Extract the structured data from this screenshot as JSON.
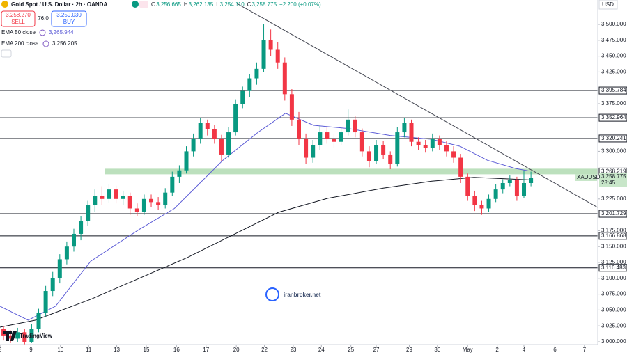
{
  "header": {
    "symbol": "Gold Spot / U.S. Dollar · 2h · OANDA",
    "ohlc": [
      {
        "key": "O",
        "value": "3,256.665"
      },
      {
        "key": "H",
        "value": "3,262.135"
      },
      {
        "key": "L",
        "value": "3,254.110"
      },
      {
        "key": "C",
        "value": "3,258.775"
      }
    ],
    "change": "+2.200 (+0.07%)",
    "sell": {
      "price": "3,258.270",
      "label": "SELL"
    },
    "spread": "76.0",
    "buy": {
      "price": "3,259.030",
      "label": "BUY"
    },
    "currency": "USD"
  },
  "watermark": "iranbroker.net",
  "logo": "TradingView",
  "chart_data": {
    "type": "candlestick",
    "up_color": "#089981",
    "down_color": "#f23645",
    "grid": false,
    "xlim": [
      0,
      85
    ],
    "ylim": [
      2995.6,
      3538.4
    ],
    "candles": [
      [
        3020,
        3025,
        3002,
        3010
      ],
      [
        3010,
        3018,
        2998,
        3005
      ],
      [
        3005,
        3022,
        3000,
        3015
      ],
      [
        3015,
        3020,
        2995,
        3000
      ],
      [
        3000,
        3028,
        2998,
        3020
      ],
      [
        3020,
        3052,
        3015,
        3045
      ],
      [
        3045,
        3088,
        3040,
        3080
      ],
      [
        3080,
        3110,
        3072,
        3100
      ],
      [
        3100,
        3138,
        3092,
        3130
      ],
      [
        3130,
        3158,
        3122,
        3150
      ],
      [
        3150,
        3178,
        3142,
        3170
      ],
      [
        3170,
        3198,
        3160,
        3190
      ],
      [
        3190,
        3222,
        3182,
        3215
      ],
      [
        3215,
        3240,
        3205,
        3230
      ],
      [
        3230,
        3245,
        3215,
        3225
      ],
      [
        3225,
        3248,
        3218,
        3240
      ],
      [
        3240,
        3246,
        3218,
        3225
      ],
      [
        3225,
        3238,
        3215,
        3230
      ],
      [
        3230,
        3235,
        3200,
        3210
      ],
      [
        3210,
        3218,
        3198,
        3205
      ],
      [
        3205,
        3232,
        3200,
        3225
      ],
      [
        3225,
        3232,
        3212,
        3220
      ],
      [
        3220,
        3228,
        3208,
        3215
      ],
      [
        3215,
        3242,
        3210,
        3235
      ],
      [
        3235,
        3268,
        3230,
        3260
      ],
      [
        3260,
        3278,
        3250,
        3270
      ],
      [
        3270,
        3308,
        3265,
        3300
      ],
      [
        3300,
        3328,
        3292,
        3320
      ],
      [
        3320,
        3352,
        3312,
        3345
      ],
      [
        3345,
        3350,
        3325,
        3335
      ],
      [
        3335,
        3342,
        3312,
        3320
      ],
      [
        3320,
        3326,
        3285,
        3295
      ],
      [
        3295,
        3338,
        3290,
        3330
      ],
      [
        3330,
        3382,
        3325,
        3375
      ],
      [
        3375,
        3402,
        3368,
        3395
      ],
      [
        3395,
        3422,
        3385,
        3415
      ],
      [
        3415,
        3440,
        3405,
        3430
      ],
      [
        3430,
        3500,
        3425,
        3475
      ],
      [
        3475,
        3492,
        3450,
        3460
      ],
      [
        3460,
        3472,
        3430,
        3440
      ],
      [
        3440,
        3448,
        3380,
        3390
      ],
      [
        3390,
        3398,
        3340,
        3350
      ],
      [
        3350,
        3362,
        3310,
        3320
      ],
      [
        3320,
        3328,
        3280,
        3290
      ],
      [
        3290,
        3318,
        3282,
        3310
      ],
      [
        3310,
        3340,
        3302,
        3330
      ],
      [
        3330,
        3338,
        3312,
        3320
      ],
      [
        3320,
        3328,
        3305,
        3315
      ],
      [
        3315,
        3338,
        3310,
        3330
      ],
      [
        3330,
        3366,
        3325,
        3350
      ],
      [
        3350,
        3356,
        3322,
        3330
      ],
      [
        3330,
        3336,
        3292,
        3300
      ],
      [
        3300,
        3308,
        3275,
        3285
      ],
      [
        3285,
        3318,
        3280,
        3310
      ],
      [
        3310,
        3316,
        3288,
        3295
      ],
      [
        3295,
        3300,
        3272,
        3280
      ],
      [
        3280,
        3338,
        3276,
        3330
      ],
      [
        3330,
        3352,
        3322,
        3345
      ],
      [
        3345,
        3350,
        3308,
        3315
      ],
      [
        3315,
        3322,
        3302,
        3310
      ],
      [
        3310,
        3318,
        3298,
        3305
      ],
      [
        3305,
        3328,
        3300,
        3320
      ],
      [
        3320,
        3325,
        3302,
        3310
      ],
      [
        3310,
        3316,
        3292,
        3300
      ],
      [
        3300,
        3308,
        3282,
        3290
      ],
      [
        3290,
        3296,
        3250,
        3260
      ],
      [
        3260,
        3265,
        3222,
        3230
      ],
      [
        3230,
        3238,
        3206,
        3215
      ],
      [
        3215,
        3222,
        3200,
        3210
      ],
      [
        3210,
        3232,
        3205,
        3225
      ],
      [
        3225,
        3248,
        3220,
        3240
      ],
      [
        3240,
        3256,
        3234,
        3250
      ],
      [
        3250,
        3262,
        3245,
        3255
      ],
      [
        3255,
        3260,
        3222,
        3230
      ],
      [
        3230,
        3270,
        3226,
        3250
      ],
      [
        3250,
        3268,
        3245,
        3258.775
      ]
    ],
    "series": [
      {
        "name": "EMA 50 close",
        "legend_value": "3,265.944",
        "color": "#5b5bd6",
        "x": [
          0,
          4,
          7.9,
          12.9,
          19.8,
          24.8,
          31.7,
          36.7,
          40.6,
          44.6,
          49.5,
          55.5,
          61.4,
          65.4,
          69.3,
          73.3,
          75.3
        ],
        "values": [
          3056,
          3034,
          3056,
          3127,
          3177,
          3210,
          3286,
          3330,
          3360,
          3341,
          3336,
          3325,
          3319,
          3308,
          3286,
          3273,
          3269
        ]
      },
      {
        "name": "EMA 200 close",
        "legend_value": "3,256.205",
        "color": "#131722",
        "x": [
          0,
          5,
          12.9,
          19.8,
          26.7,
          32.7,
          39.6,
          46.6,
          54.5,
          61.4,
          67.4,
          75.3
        ],
        "values": [
          3023,
          3034,
          3067,
          3100,
          3133,
          3166,
          3204,
          3226,
          3242,
          3253,
          3259,
          3255
        ]
      }
    ],
    "levels": [
      {
        "value": 3395.784,
        "label": "3,395.784"
      },
      {
        "value": 3352.964,
        "label": "3,352.964"
      },
      {
        "value": 3320.241,
        "label": "3,320.241"
      },
      {
        "value": 3201.729,
        "label": "3,201.729"
      },
      {
        "value": 3166.868,
        "label": "3,166.868"
      },
      {
        "value": 3116.483,
        "label": "3,116.483"
      }
    ],
    "zone": {
      "value": 3268.219,
      "label": "3,268.219",
      "color": "#a5d6a7"
    },
    "last": {
      "value": 3258.775,
      "label": "3,258.775",
      "symbol": "XAUUSD",
      "countdown": "28:45"
    },
    "trendline": {
      "x": [
        33.7,
        85
      ],
      "values": [
        3532.9,
        3211.6
      ]
    },
    "yticks": [
      {
        "value": 3500,
        "label": "3,500.000"
      },
      {
        "value": 3475,
        "label": "3,475.000"
      },
      {
        "value": 3450,
        "label": "3,450.000"
      },
      {
        "value": 3425,
        "label": "3,425.000"
      },
      {
        "value": 3375,
        "label": "3,375.000"
      },
      {
        "value": 3300,
        "label": "3,300.000"
      },
      {
        "value": 3225,
        "label": "3,225.000"
      },
      {
        "value": 3175,
        "label": "3,175.000"
      },
      {
        "value": 3150,
        "label": "3,150.000"
      },
      {
        "value": 3125,
        "label": "3,125.000"
      },
      {
        "value": 3100,
        "label": "3,100.000"
      },
      {
        "value": 3075,
        "label": "3,075.000"
      },
      {
        "value": 3050,
        "label": "3,050.000"
      },
      {
        "value": 3025,
        "label": "3,025.000"
      },
      {
        "value": 3000,
        "label": "3,000.000"
      }
    ],
    "xticks": [
      {
        "value": 0,
        "label": "8"
      },
      {
        "value": 4.4,
        "label": "9"
      },
      {
        "value": 8.6,
        "label": "10"
      },
      {
        "value": 12.6,
        "label": "11"
      },
      {
        "value": 16.6,
        "label": "13"
      },
      {
        "value": 20.8,
        "label": "15"
      },
      {
        "value": 25.1,
        "label": "16"
      },
      {
        "value": 29.3,
        "label": "17"
      },
      {
        "value": 33.6,
        "label": "20"
      },
      {
        "value": 37.6,
        "label": "22"
      },
      {
        "value": 41.7,
        "label": "23"
      },
      {
        "value": 45.7,
        "label": "24"
      },
      {
        "value": 49.9,
        "label": "25"
      },
      {
        "value": 53.5,
        "label": "27"
      },
      {
        "value": 58.2,
        "label": "29"
      },
      {
        "value": 62.2,
        "label": "30"
      },
      {
        "value": 66.5,
        "label": "May"
      },
      {
        "value": 70.7,
        "label": "2"
      },
      {
        "value": 74.5,
        "label": "4"
      },
      {
        "value": 78.9,
        "label": "6"
      },
      {
        "value": 83.1,
        "label": "7"
      }
    ]
  }
}
